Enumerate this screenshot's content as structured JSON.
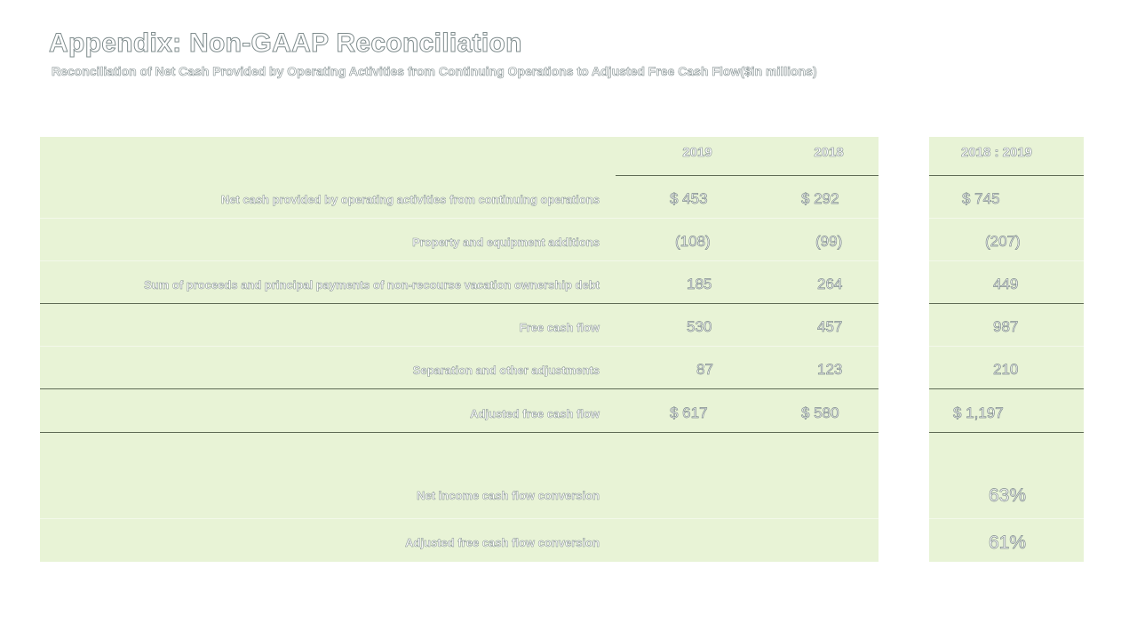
{
  "slide": {
    "title": "Appendix: Non-GAAP Reconciliation",
    "subtitle": "Reconciliation of Net Cash Provided by Operating Activities from Continuing Operations to Adjusted Free Cash Flow($in millions)"
  },
  "table": {
    "headers": [
      "2019",
      "2018",
      "2018 : 2019"
    ],
    "rows": [
      {
        "label": "Net cash provided by operating activities from continuing operations",
        "v2019": "$ 453",
        "v2018": "$ 292",
        "total": "$ 745"
      },
      {
        "label": "Property and equipment additions",
        "v2019": "(108)",
        "v2018": "(99)",
        "total": "(207)"
      },
      {
        "label": "Sum of proceeds and principal payments of non-recourse vacation ownership debt",
        "v2019": "185",
        "v2018": "264",
        "total": "449"
      },
      {
        "label": "Free cash flow",
        "v2019": "530",
        "v2018": "457",
        "total": "987"
      },
      {
        "label": "Separation and other adjustments",
        "v2019": "87",
        "v2018": "123",
        "total": "210"
      },
      {
        "label": "Adjusted free cash flow",
        "v2019": "$ 617",
        "v2018": "$ 580",
        "total": "$ 1,197"
      }
    ],
    "conversions": [
      {
        "label": "Net income cash flow conversion",
        "value": "63%"
      },
      {
        "label": "Adjusted free cash flow conversion",
        "value": "61%"
      }
    ]
  },
  "colors": {
    "panel_background": "#e8f3d6",
    "outline_text": "#7f8c8d",
    "rule_line": "#5f6b55"
  }
}
